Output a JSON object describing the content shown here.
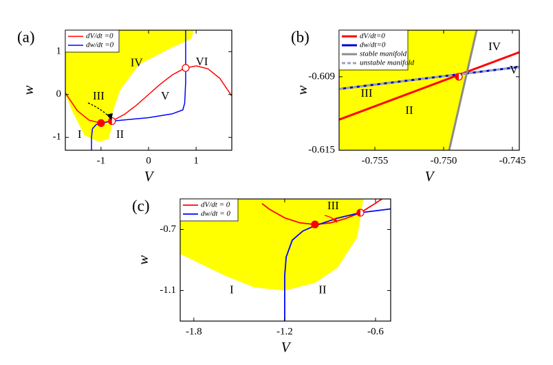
{
  "chart_data": [
    {
      "type": "line",
      "panel_label": "(a)",
      "xlabel": "V",
      "ylabel": "w",
      "xlim": [
        -1.75,
        1.75
      ],
      "ylim": [
        -1.3,
        1.5
      ],
      "xticks": [
        -1,
        0,
        1
      ],
      "yticks": [
        -1,
        0,
        1
      ],
      "legend": "upper left",
      "regions": [
        {
          "color": "#ffff00",
          "x": [
            -1.75,
            0.95,
            0.9,
            0.5,
            -0.2,
            -0.6,
            -0.8,
            -0.78,
            -0.85,
            -1.05,
            -1.35,
            -1.6,
            -1.75
          ],
          "y": [
            1.5,
            1.5,
            1.3,
            1.1,
            0.7,
            0.1,
            -0.55,
            -0.8,
            -1.05,
            -1.1,
            -0.95,
            -0.4,
            0.0
          ]
        }
      ],
      "series": [
        {
          "name": "dV/dt =0",
          "color": "#ff0000",
          "x": [
            -1.75,
            -1.5,
            -1.25,
            -1.0,
            -0.75,
            -0.5,
            -0.25,
            0,
            0.25,
            0.5,
            0.75,
            1.0,
            1.25,
            1.5,
            1.75
          ],
          "values": [
            0.036,
            -0.375,
            -0.599,
            -0.667,
            -0.609,
            -0.458,
            -0.245,
            0,
            0.245,
            0.458,
            0.609,
            0.667,
            0.599,
            0.375,
            -0.036
          ]
        },
        {
          "name": "dw/dt =0",
          "color": "#0000ff",
          "x": [
            -1.2,
            -1.2,
            -1.18,
            -1.1,
            -1.0,
            -0.77,
            0,
            0.5,
            0.72,
            0.76,
            0.78,
            0.78,
            0.78
          ],
          "values": [
            -1.3,
            -1.0,
            -0.8,
            -0.7,
            -0.667,
            -0.62,
            -0.54,
            -0.45,
            -0.36,
            -0.2,
            0.3,
            0.62,
            1.5
          ]
        }
      ],
      "fixed_points": {
        "x": [
          -1.0,
          -0.77,
          0.78
        ],
        "y": [
          -0.667,
          -0.62,
          0.62
        ],
        "styles": [
          "filled",
          "half",
          "open"
        ]
      },
      "annotations": [
        {
          "text": "I",
          "x": -1.45,
          "y": -0.95
        },
        {
          "text": "II",
          "x": -0.6,
          "y": -0.95
        },
        {
          "text": "III",
          "x": -1.05,
          "y": -0.05
        },
        {
          "text": "IV",
          "x": -0.25,
          "y": 0.72
        },
        {
          "text": "V",
          "x": 0.35,
          "y": -0.05
        },
        {
          "text": "VI",
          "x": 1.12,
          "y": 0.75
        }
      ]
    },
    {
      "type": "line",
      "panel_label": "(b)",
      "xlabel": "V",
      "ylabel": "w",
      "xlim": [
        -0.7576,
        -0.7445
      ],
      "ylim": [
        -0.615,
        -0.6052
      ],
      "xticks": [
        -0.755,
        {
          "value": -0.75,
          "label": "-0.750"
        },
        -0.745
      ],
      "yticks": [
        -0.609,
        -0.615
      ],
      "legend": "upper left",
      "regions": [
        {
          "color": "#ffff00",
          "x": [
            -0.7576,
            -0.7476,
            -0.7496,
            -0.7576
          ],
          "y": [
            -0.6052,
            -0.6052,
            -0.615,
            -0.615
          ]
        }
      ],
      "series": [
        {
          "name": "dV/dt=0",
          "color": "#ff0000",
          "x": [
            -0.7576,
            -0.7445
          ],
          "values": [
            -0.6125,
            -0.607
          ]
        },
        {
          "name": "dw/dt=0",
          "color": "#0000cc",
          "x": [
            -0.7576,
            -0.7445
          ],
          "values": [
            -0.61,
            -0.6082
          ]
        },
        {
          "name": "stable manifold",
          "color": "#8c8c8c",
          "x": [
            -0.7496,
            -0.7476
          ],
          "values": [
            -0.615,
            -0.6052
          ]
        },
        {
          "name": "unstable manifold",
          "color": "#9aa0c0",
          "dashed": true,
          "x": [
            -0.7576,
            -0.7445
          ],
          "values": [
            -0.61,
            -0.6082
          ]
        }
      ],
      "fixed_points": {
        "x": [
          -0.7489
        ],
        "y": [
          -0.609
        ],
        "styles": [
          "half"
        ]
      },
      "annotations": [
        {
          "text": "IV",
          "x": -0.7463,
          "y": -0.6066
        },
        {
          "text": "V",
          "x": -0.7449,
          "y": -0.6085
        },
        {
          "text": "III",
          "x": -0.7556,
          "y": -0.6104
        },
        {
          "text": "II",
          "x": -0.7525,
          "y": -0.6118
        }
      ]
    },
    {
      "type": "line",
      "panel_label": "(c)",
      "xlabel": "V",
      "ylabel": "w",
      "xlim": [
        -1.89,
        -0.5
      ],
      "ylim": [
        -1.3,
        -0.5
      ],
      "xticks": [
        -1.8,
        -1.2,
        -0.6
      ],
      "yticks": [
        -0.7,
        -1.1
      ],
      "legend": "upper left",
      "regions": [
        {
          "color": "#ffff00",
          "x": [
            -1.89,
            -0.68,
            -0.72,
            -0.85,
            -1.0,
            -1.2,
            -1.4,
            -1.6,
            -1.89
          ],
          "y": [
            -0.5,
            -0.5,
            -0.75,
            -0.95,
            -1.05,
            -1.1,
            -1.08,
            -1.0,
            -0.86
          ]
        }
      ],
      "series": [
        {
          "name": "dV/dt = 0",
          "color": "#ff0000",
          "x": [
            -1.35,
            -1.3,
            -1.2,
            -1.1,
            -1.0,
            -0.9,
            -0.8,
            -0.7,
            -0.6,
            -0.55
          ],
          "values": [
            -0.53,
            -0.568,
            -0.624,
            -0.656,
            -0.667,
            -0.657,
            -0.629,
            -0.59,
            -0.528,
            -0.495
          ]
        },
        {
          "name": "dw/dt = 0",
          "color": "#0000ff",
          "x": [
            -1.2,
            -1.2,
            -1.19,
            -1.15,
            -1.08,
            -1.0,
            -0.85,
            -0.7,
            -0.5
          ],
          "values": [
            -1.3,
            -1.0,
            -0.88,
            -0.77,
            -0.71,
            -0.675,
            -0.625,
            -0.59,
            -0.565
          ]
        }
      ],
      "fixed_points": {
        "x": [
          -1.0,
          -0.7
        ],
        "y": [
          -0.667,
          -0.59
        ],
        "styles": [
          "filled",
          "half"
        ]
      },
      "annotations": [
        {
          "text": "I",
          "x": -1.55,
          "y": -1.1
        },
        {
          "text": "II",
          "x": -0.95,
          "y": -1.1
        },
        {
          "text": "III",
          "x": -0.88,
          "y": -0.55
        }
      ]
    }
  ]
}
